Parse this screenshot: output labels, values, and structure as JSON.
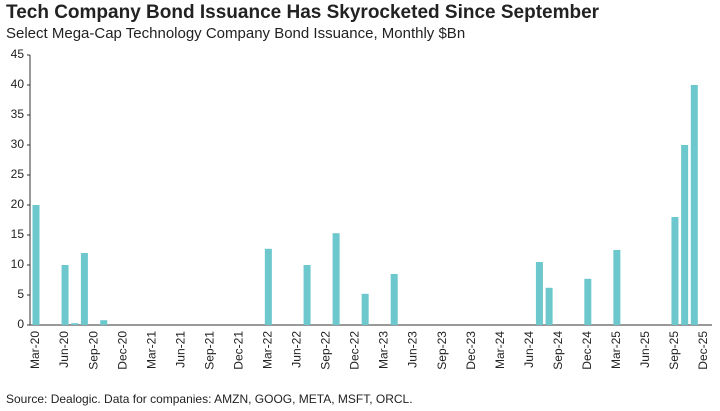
{
  "chart_data": {
    "type": "bar",
    "title": "Tech Company Bond Issuance Has Skyrocketed Since September",
    "subtitle": "Select Mega-Cap Technology Company Bond Issuance, Monthly $Bn",
    "source": "Source: Dealogic. Data for companies: AMZN, GOOG, META, MSFT, ORCL.",
    "categories": [
      "Mar-20",
      null,
      null,
      "Jun-20",
      null,
      null,
      "Sep-20",
      null,
      null,
      "Dec-20",
      null,
      null,
      "Mar-21",
      null,
      null,
      "Jun-21",
      null,
      null,
      "Sep-21",
      null,
      null,
      "Dec-21",
      null,
      null,
      "Mar-22",
      null,
      null,
      "Jun-22",
      null,
      null,
      "Sep-22",
      null,
      null,
      "Dec-22",
      null,
      null,
      "Mar-23",
      null,
      null,
      "Jun-23",
      null,
      null,
      "Sep-23",
      null,
      null,
      "Dec-23",
      null,
      null,
      "Mar-24",
      null,
      null,
      "Jun-24",
      null,
      null,
      "Sep-24",
      null,
      null,
      "Dec-24",
      null,
      null,
      "Mar-25",
      null,
      null,
      "Jun-25",
      null,
      null,
      "Sep-25",
      null,
      null,
      "Dec-25"
    ],
    "values": [
      20,
      0,
      0,
      10,
      0.3,
      12,
      0,
      0.8,
      0,
      0,
      0,
      0,
      0,
      0,
      0,
      0,
      0,
      0,
      0,
      0,
      0,
      0,
      0,
      0,
      12.7,
      0,
      0,
      0,
      10,
      0,
      0,
      15.3,
      0,
      0,
      5.2,
      0,
      0,
      8.5,
      0,
      0,
      0,
      0,
      0,
      0,
      0,
      0,
      0,
      0,
      0,
      0,
      0,
      0,
      10.5,
      6.2,
      0,
      0,
      0,
      7.7,
      0,
      0,
      12.5,
      0,
      0,
      0,
      0,
      0,
      18,
      30,
      40,
      0
    ],
    "color": "#6cc8cc",
    "ylim": [
      0,
      45
    ],
    "yticks": [
      0,
      5,
      10,
      15,
      20,
      25,
      30,
      35,
      40,
      45
    ],
    "grid": false
  }
}
